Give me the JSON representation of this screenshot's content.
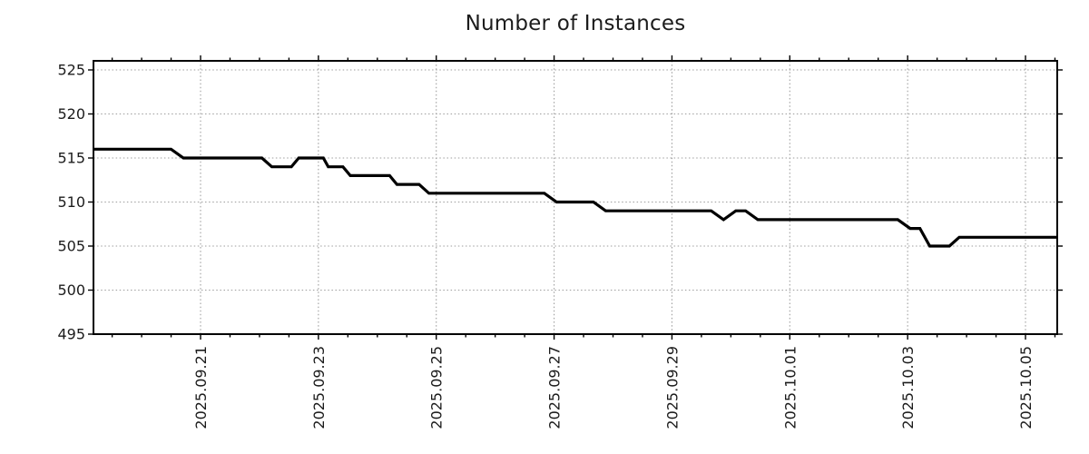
{
  "title": "Number of Instances",
  "style": {
    "background": "#ffffff",
    "line_color": "#000000",
    "grid_color": "#9e9e9e",
    "axis_color": "#000000",
    "text_color": "#1c1c1c"
  },
  "chart_data": {
    "type": "line",
    "title": "Number of Instances",
    "xlabel": "",
    "ylabel": "",
    "grid": true,
    "legend": null,
    "markers": false,
    "y_axis": {
      "tick_values": [
        495,
        500,
        505,
        510,
        515,
        520,
        525
      ],
      "range": [
        495,
        526
      ]
    },
    "x_axis": {
      "tick_labels": [
        "2025.09.21",
        "2025.09.23",
        "2025.09.25",
        "2025.09.27",
        "2025.09.29",
        "2025.10.01",
        "2025.10.03",
        "2025.10.05"
      ],
      "tick_dates": [
        "2025-09-21",
        "2025-09-23",
        "2025-09-25",
        "2025-09-27",
        "2025-09-29",
        "2025-10-01",
        "2025-10-03",
        "2025-10-05"
      ],
      "visible_range": [
        "2025-09-19 04:00",
        "2025-10-05 13:00"
      ],
      "major_tick_interval_days": 2,
      "minor_tick_interval_days": 0.5
    },
    "series": [
      {
        "name": "Number of Instances",
        "color": "#000000",
        "points": [
          [
            "2025-09-19 04:00",
            516
          ],
          [
            "2025-09-20 12:00",
            516
          ],
          [
            "2025-09-20 17:00",
            515
          ],
          [
            "2025-09-22 01:00",
            515
          ],
          [
            "2025-09-22 05:00",
            514
          ],
          [
            "2025-09-22 13:00",
            514
          ],
          [
            "2025-09-22 16:00",
            515
          ],
          [
            "2025-09-23 02:00",
            515
          ],
          [
            "2025-09-23 04:00",
            514
          ],
          [
            "2025-09-23 10:00",
            514
          ],
          [
            "2025-09-23 13:00",
            513
          ],
          [
            "2025-09-24 05:00",
            513
          ],
          [
            "2025-09-24 08:00",
            512
          ],
          [
            "2025-09-24 17:00",
            512
          ],
          [
            "2025-09-24 21:00",
            511
          ],
          [
            "2025-09-26 20:00",
            511
          ],
          [
            "2025-09-27 01:00",
            510
          ],
          [
            "2025-09-27 16:00",
            510
          ],
          [
            "2025-09-27 21:00",
            509
          ],
          [
            "2025-09-29 16:00",
            509
          ],
          [
            "2025-09-29 21:00",
            508
          ],
          [
            "2025-09-30 02:00",
            509
          ],
          [
            "2025-09-30 06:00",
            509
          ],
          [
            "2025-09-30 11:00",
            508
          ],
          [
            "2025-10-02 20:00",
            508
          ],
          [
            "2025-10-03 01:00",
            507
          ],
          [
            "2025-10-03 05:00",
            507
          ],
          [
            "2025-10-03 09:00",
            505
          ],
          [
            "2025-10-03 17:00",
            505
          ],
          [
            "2025-10-03 21:00",
            506
          ],
          [
            "2025-10-05 13:00",
            506
          ]
        ]
      }
    ]
  }
}
